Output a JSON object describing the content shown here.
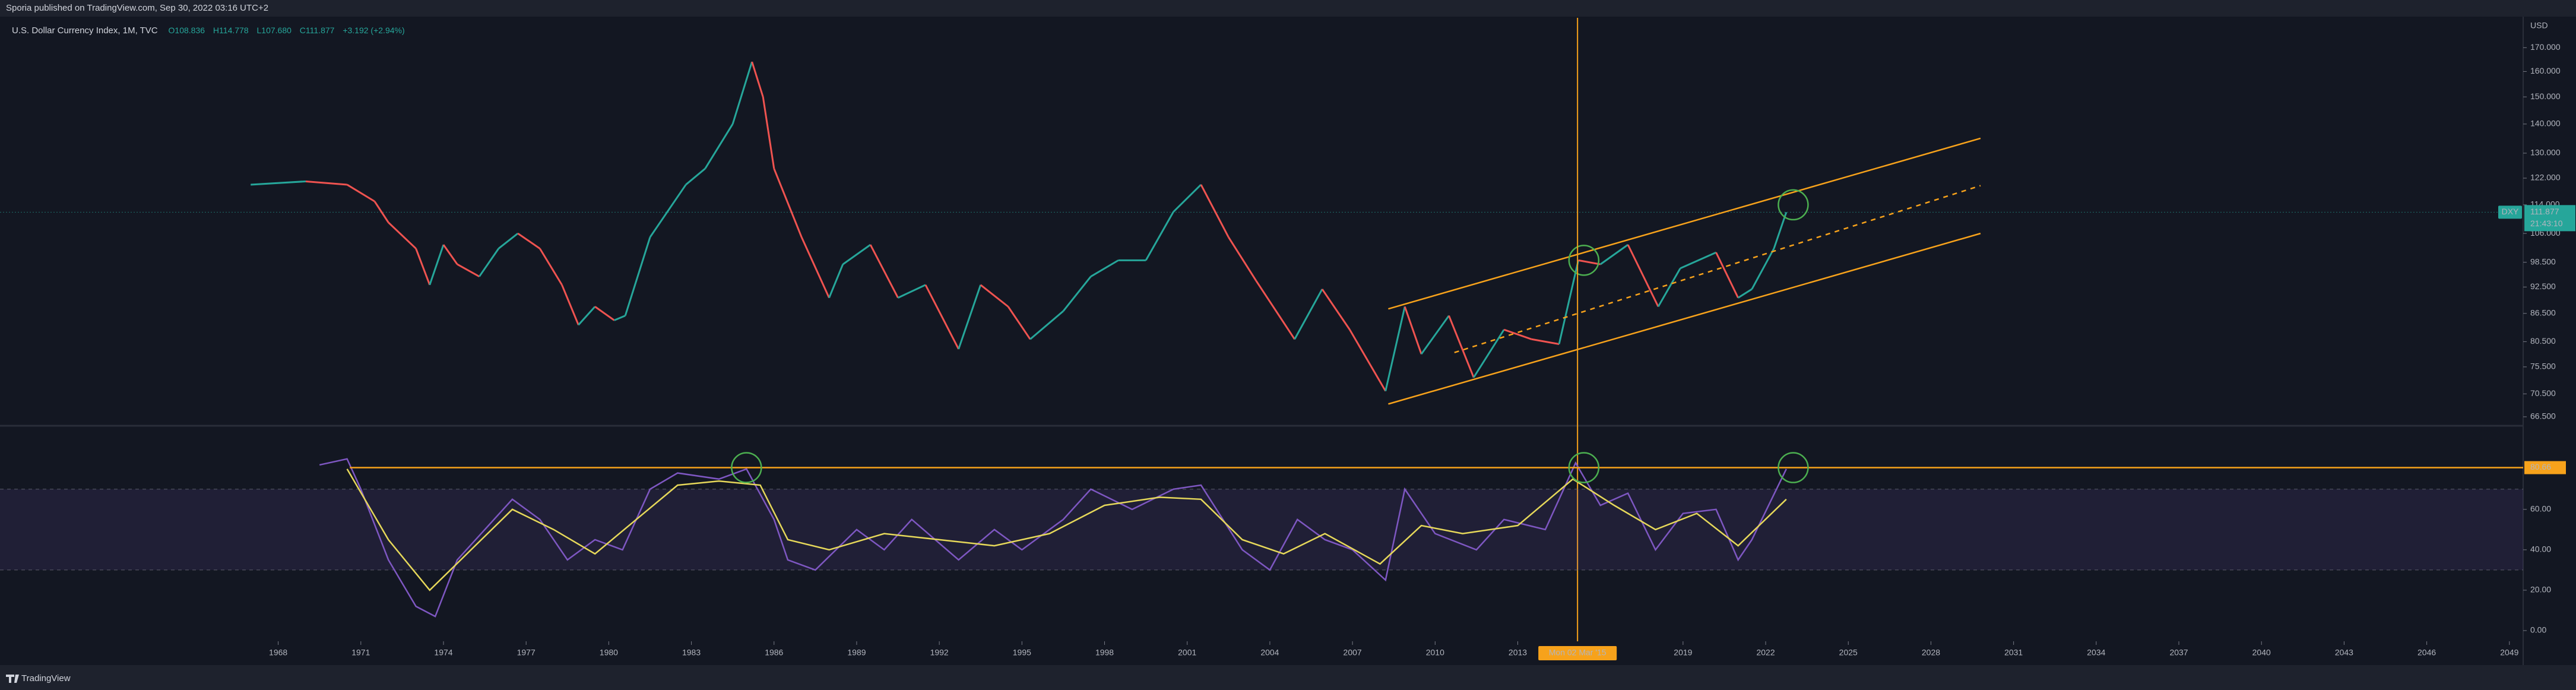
{
  "header": {
    "publisher": "Sporia published on TradingView.com, Sep 30, 2022 03:16 UTC+2"
  },
  "footer": {
    "brand": "TradingView"
  },
  "chart_data": [
    {
      "type": "line",
      "title": "U.S. Dollar Currency Index, 1M, TVC",
      "ohlc": [
        "O108.836",
        "H114.778",
        "L107.680",
        "C111.877",
        "+3.192 (+2.94%)"
      ],
      "y_unit": "USD",
      "log_scale": true,
      "grid": false,
      "up_color": "#26a69a",
      "down_color": "#ef5350",
      "xlim": [
        1957.9,
        2049.5
      ],
      "ylim": [
        65.2,
        183.4
      ],
      "yticks": [
        {
          "value": 170,
          "label": "170.000"
        },
        {
          "value": 160,
          "label": "160.000"
        },
        {
          "value": 150,
          "label": "150.000"
        },
        {
          "value": 140,
          "label": "140.000"
        },
        {
          "value": 130,
          "label": "130.000"
        },
        {
          "value": 122,
          "label": "122.000"
        },
        {
          "value": 114,
          "label": "114.000"
        },
        {
          "value": 106,
          "label": "106.000"
        },
        {
          "value": 98.5,
          "label": "98.500"
        },
        {
          "value": 92.5,
          "label": "92.500"
        },
        {
          "value": 86.5,
          "label": "86.500"
        },
        {
          "value": 80.5,
          "label": "80.500"
        },
        {
          "value": 75.5,
          "label": "75.500"
        },
        {
          "value": 70.5,
          "label": "70.500"
        },
        {
          "value": 66.5,
          "label": "66.500"
        }
      ],
      "x": [
        1967.0,
        1969.0,
        1970.5,
        1971.5,
        1972.0,
        1973.0,
        1973.5,
        1974.0,
        1974.5,
        1975.3,
        1976.0,
        1976.7,
        1977.5,
        1978.3,
        1978.9,
        1979.5,
        1980.2,
        1980.6,
        1981.5,
        1982.8,
        1983.5,
        1984.5,
        1985.2,
        1985.6,
        1986.0,
        1987.0,
        1988.0,
        1988.5,
        1989.5,
        1990.5,
        1991.5,
        1992.7,
        1993.5,
        1994.5,
        1995.3,
        1996.5,
        1997.5,
        1998.5,
        1999.5,
        2000.5,
        2001.5,
        2002.5,
        2003.5,
        2004.9,
        2005.9,
        2006.9,
        2008.2,
        2008.9,
        2009.5,
        2010.5,
        2011.4,
        2012.5,
        2013.5,
        2014.5,
        2015.2,
        2016.0,
        2017.0,
        2018.1,
        2018.9,
        2020.2,
        2021.0,
        2021.5,
        2022.3,
        2022.75
      ],
      "values": [
        120,
        121,
        120,
        115,
        109,
        102,
        93,
        103,
        98,
        95,
        102,
        106,
        102,
        93,
        84,
        88,
        85,
        86,
        105,
        120,
        125,
        140,
        164,
        150,
        125,
        105,
        90,
        98,
        103,
        90,
        93,
        79,
        93,
        88,
        81,
        87,
        95,
        99,
        99,
        112,
        120,
        105,
        94,
        81,
        92,
        83,
        71,
        88,
        78,
        86,
        73.5,
        83,
        81,
        80,
        99,
        98,
        103,
        88,
        97,
        101,
        90,
        92,
        102,
        111.877
      ],
      "last": {
        "value": 111.877,
        "symbol": "DXY",
        "countdown": "21:43:10",
        "color": "#26a69a"
      },
      "drawings_color": "#f7a21b",
      "drawings": [
        {
          "x": [
            2008.3,
            2029.8
          ],
          "y": [
            87.5,
            135
          ],
          "dashed": false
        },
        {
          "x": [
            2008.3,
            2029.8
          ],
          "y": [
            68.7,
            106
          ],
          "dashed": false
        },
        {
          "x": [
            2010.7,
            2029.8
          ],
          "y": [
            78.3,
            119.7
          ],
          "dashed": true
        }
      ],
      "circles_color": "#4caf50",
      "circles": [
        {
          "x": 2015.4,
          "y": 99
        },
        {
          "x": 2023.0,
          "y": 114
        }
      ],
      "crosshair": {
        "x": 2015.17,
        "label": "Mon 02 Mar '15"
      }
    },
    {
      "type": "line",
      "grid": false,
      "xlim": [
        1957.9,
        2049.5
      ],
      "ylim": [
        -5.3,
        100.8
      ],
      "yticks": [
        {
          "value": 60,
          "label": "60.00"
        },
        {
          "value": 40,
          "label": "40.00"
        },
        {
          "value": 20,
          "label": "20.00"
        },
        {
          "value": 0,
          "label": "0.00"
        }
      ],
      "xticks": [
        1968,
        1971,
        1974,
        1977,
        1980,
        1983,
        1986,
        1989,
        1992,
        1995,
        1998,
        2001,
        2004,
        2007,
        2010,
        2013,
        2019,
        2022,
        2025,
        2028,
        2031,
        2034,
        2037,
        2040,
        2043,
        2046,
        2049
      ],
      "band": [
        30,
        70
      ],
      "band_color": "#7e57c2",
      "series": [
        {
          "color": "#7e57c2",
          "x": [
            1969.5,
            1970.5,
            1971.0,
            1972.0,
            1973.0,
            1973.7,
            1974.5,
            1975.5,
            1976.5,
            1977.5,
            1978.5,
            1979.5,
            1980.5,
            1981.5,
            1982.5,
            1984.0,
            1985.0,
            1986.0,
            1986.5,
            1987.5,
            1989.0,
            1990.0,
            1991.0,
            1992.7,
            1994.0,
            1995.0,
            1996.5,
            1997.5,
            1999.0,
            2000.5,
            2001.5,
            2003.0,
            2004.0,
            2005.0,
            2006.0,
            2007.0,
            2008.2,
            2008.9,
            2010.0,
            2011.5,
            2012.5,
            2014.0,
            2015.1,
            2016.0,
            2017.0,
            2018.0,
            2019.0,
            2020.2,
            2021.0,
            2021.5,
            2022.75
          ],
          "values": [
            82,
            85,
            70,
            35,
            12,
            7,
            35,
            50,
            65,
            55,
            35,
            45,
            40,
            70,
            78,
            75,
            80,
            55,
            35,
            30,
            50,
            40,
            55,
            35,
            50,
            40,
            55,
            70,
            60,
            70,
            72,
            40,
            30,
            55,
            45,
            40,
            25,
            70,
            48,
            40,
            55,
            50,
            83,
            62,
            68,
            40,
            58,
            60,
            35,
            45,
            80
          ]
        },
        {
          "color": "#e6d85a",
          "x": [
            1970.5,
            1972.0,
            1973.5,
            1975.0,
            1976.5,
            1978.0,
            1979.5,
            1981.0,
            1982.5,
            1984.0,
            1985.5,
            1986.5,
            1988.0,
            1990.0,
            1992.0,
            1994.0,
            1996.0,
            1998.0,
            2000.0,
            2001.5,
            2003.0,
            2004.5,
            2006.0,
            2008.0,
            2009.5,
            2011.0,
            2013.0,
            2015.0,
            2016.5,
            2018.0,
            2019.5,
            2021.0,
            2022.75
          ],
          "values": [
            80,
            45,
            20,
            40,
            60,
            50,
            38,
            55,
            72,
            74,
            72,
            45,
            40,
            48,
            45,
            42,
            48,
            62,
            66,
            65,
            45,
            38,
            48,
            33,
            52,
            48,
            52,
            75,
            62,
            50,
            58,
            42,
            65
          ]
        }
      ],
      "level": {
        "value": 80.66,
        "x": 1970.6,
        "color": "#f7a21b"
      },
      "circles_color": "#4caf50",
      "circles": [
        {
          "x": 1985.0,
          "y": 80.66
        },
        {
          "x": 2015.4,
          "y": 80.66
        },
        {
          "x": 2023.0,
          "y": 80.66
        }
      ]
    }
  ]
}
